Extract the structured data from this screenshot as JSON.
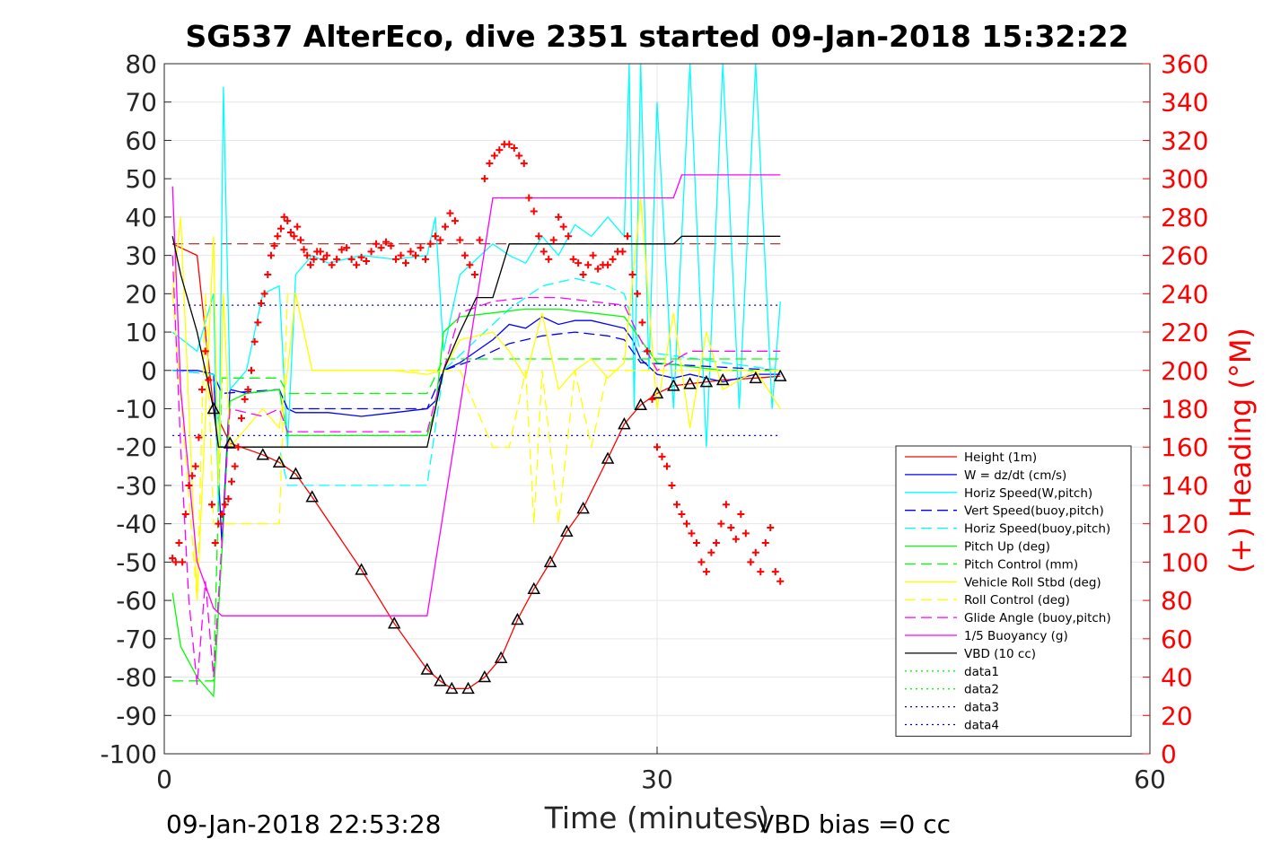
{
  "chart_data": {
    "type": "line",
    "title": "SG537 AlterEco, dive 2351 started 09-Jan-2018 15:32:22",
    "xlabel": "Time (minutes)",
    "ylabel": "",
    "y2label": "(+) Heading (°M)",
    "xlim": [
      0,
      60
    ],
    "ylim": [
      -100,
      80
    ],
    "y2lim": [
      0,
      360
    ],
    "x_ticks": [
      0,
      30,
      60
    ],
    "y_ticks": [
      80,
      70,
      60,
      50,
      40,
      30,
      20,
      10,
      0,
      -10,
      -20,
      -30,
      -40,
      -50,
      -60,
      -70,
      -80,
      -90,
      -100
    ],
    "y2_ticks": [
      360,
      340,
      320,
      300,
      280,
      260,
      240,
      220,
      200,
      180,
      160,
      140,
      120,
      100,
      80,
      60,
      40,
      20,
      0
    ],
    "grid": true,
    "legend_position": "bottom-right",
    "footer_left": "09-Jan-2018 22:53:28",
    "footer_right": "VBD bias =0 cc",
    "colors": {
      "height": "#ff0000",
      "w": "#0000ff",
      "horiz": "#00ffff",
      "vert_buoy": "#0000ff",
      "horiz_buoy": "#00ffff",
      "pitch_up": "#00ff00",
      "pitch_ctrl": "#00ff00",
      "roll": "#ffff00",
      "roll_ctrl": "#ffff00",
      "glide": "#ff00ff",
      "buoy": "#ff00ff",
      "vbd": "#000000",
      "heading": "#ff0000",
      "data3": "#0000aa"
    },
    "legend": [
      {
        "name": "Height (1m)",
        "color": "#ff0000",
        "dash": "solid"
      },
      {
        "name": "W = dz/dt (cm/s)",
        "color": "#0000ff",
        "dash": "solid"
      },
      {
        "name": "Horiz Speed(W,pitch)",
        "color": "#00ffff",
        "dash": "solid"
      },
      {
        "name": "Vert Speed(buoy,pitch)",
        "color": "#0000ff",
        "dash": "dashed"
      },
      {
        "name": "Horiz Speed(buoy,pitch)",
        "color": "#00ffff",
        "dash": "dashed"
      },
      {
        "name": "Pitch Up (deg)",
        "color": "#00ff00",
        "dash": "solid"
      },
      {
        "name": "Pitch Control (mm)",
        "color": "#00ff00",
        "dash": "dashed"
      },
      {
        "name": "Vehicle Roll Stbd (deg)",
        "color": "#ffff00",
        "dash": "solid"
      },
      {
        "name": "Roll Control (deg)",
        "color": "#ffff00",
        "dash": "dashed"
      },
      {
        "name": "Glide Angle (buoy,pitch)",
        "color": "#ff00ff",
        "dash": "dashed"
      },
      {
        "name": "1/5 Buoyancy (g)",
        "color": "#ff00ff",
        "dash": "solid"
      },
      {
        "name": "VBD (10 cc)",
        "color": "#000000",
        "dash": "solid"
      },
      {
        "name": "data1",
        "color": "#00ff00",
        "dash": "dotted"
      },
      {
        "name": "data2",
        "color": "#00ff00",
        "dash": "dotted"
      },
      {
        "name": "data3",
        "color": "#0000aa",
        "dash": "dotted"
      },
      {
        "name": "data4",
        "color": "#0000aa",
        "dash": "dotted"
      }
    ],
    "series": [
      {
        "key": "height",
        "x": [
          0.5,
          2,
          3,
          4,
          6,
          7,
          8,
          9,
          12,
          14,
          16,
          16.8,
          17.5,
          18.5,
          19.5,
          20.5,
          21.5,
          22.5,
          23.5,
          24.5,
          25.5,
          27,
          28,
          29,
          30,
          31,
          32,
          33,
          34,
          36,
          37.5
        ],
        "y": [
          33,
          30,
          -10,
          -19,
          -22,
          -24,
          -27,
          -33,
          -52,
          -66,
          -78,
          -81,
          -83,
          -83,
          -80,
          -75,
          -65,
          -57,
          -50,
          -42,
          -36,
          -23,
          -14,
          -9,
          -6,
          -4,
          -3.5,
          -3,
          -2.5,
          -2,
          -1.5
        ]
      },
      {
        "key": "w",
        "x": [
          0.5,
          2,
          3,
          3.5,
          4,
          5,
          7,
          7.5,
          8,
          10,
          12,
          14,
          16,
          16.5,
          17,
          18,
          19,
          20,
          21,
          22,
          23,
          24,
          25,
          26,
          27,
          28,
          28.5,
          29,
          30,
          31,
          32,
          34,
          36,
          37.5
        ],
        "y": [
          0,
          0,
          -1,
          -45,
          -5,
          -6,
          -5,
          -10,
          -11,
          -11,
          -12,
          -11,
          -10,
          -8,
          0,
          2,
          5,
          8,
          12,
          11,
          14,
          12,
          13,
          13,
          12,
          11,
          8,
          3,
          -1,
          -2,
          -1,
          -3,
          -1,
          -1
        ]
      },
      {
        "key": "horiz",
        "x": [
          0.5,
          2,
          3,
          3.3,
          3.6,
          4,
          5,
          6,
          7,
          7.5,
          8,
          9,
          10,
          12,
          14,
          16,
          16.5,
          17,
          18,
          20,
          21,
          22,
          23,
          24,
          25,
          26,
          27,
          28,
          28.3,
          28.6,
          29,
          29.5,
          30,
          31,
          32,
          33,
          34,
          35,
          36,
          37,
          37.5
        ],
        "y": [
          10,
          5,
          20,
          -35,
          74,
          -5,
          0,
          20,
          22,
          -20,
          25,
          30,
          28,
          30,
          29,
          30,
          40,
          5,
          25,
          33,
          30,
          28,
          35,
          30,
          38,
          35,
          40,
          35,
          80,
          -10,
          80,
          0,
          70,
          -10,
          80,
          -20,
          80,
          -10,
          80,
          -10,
          18
        ]
      },
      {
        "key": "vert_buoy",
        "x": [
          0.5,
          3,
          3.5,
          7,
          7.5,
          16,
          17,
          19,
          21,
          23,
          25,
          27,
          28,
          29,
          37.5
        ],
        "y": [
          0,
          -1,
          -6,
          -5,
          -10,
          -10,
          0,
          3,
          7,
          9,
          10,
          9,
          8,
          2,
          0
        ]
      },
      {
        "key": "horiz_buoy",
        "x": [
          0.5,
          3,
          3.5,
          7,
          7.5,
          16,
          17,
          19,
          21,
          23,
          25,
          27,
          28,
          29,
          37.5
        ],
        "y": [
          0,
          -1,
          -20,
          -20,
          -30,
          -30,
          0,
          8,
          16,
          22,
          24,
          22,
          20,
          5,
          0
        ]
      },
      {
        "key": "pitch_up",
        "x": [
          0.5,
          1,
          2,
          3,
          3.5,
          4,
          5,
          7,
          7.5,
          10,
          14,
          16,
          16.5,
          17,
          18,
          20,
          22,
          24,
          26,
          28,
          29,
          30,
          32,
          34,
          36,
          37.5
        ],
        "y": [
          -58,
          -72,
          -80,
          -85,
          -48,
          -8,
          -6,
          -5,
          -17,
          -17,
          -17,
          -17,
          -10,
          10,
          14,
          15,
          16,
          16,
          15,
          14,
          8,
          2,
          1,
          0,
          0,
          0
        ]
      },
      {
        "key": "pitch_ctrl",
        "x": [
          0.5,
          3,
          3.5,
          7,
          7.5,
          16,
          17,
          37.5
        ],
        "y": [
          -81,
          -81,
          -2,
          -2,
          -6,
          -6,
          3,
          3
        ]
      },
      {
        "key": "roll",
        "x": [
          0.5,
          1,
          2,
          3,
          3.3,
          3.6,
          4,
          6,
          7,
          7.5,
          8,
          9,
          10,
          14,
          16,
          17,
          18,
          20,
          21,
          22,
          23,
          24,
          25,
          26,
          27,
          28,
          29,
          30,
          31,
          32,
          33,
          34,
          36,
          37.5
        ],
        "y": [
          20,
          40,
          -60,
          35,
          -30,
          20,
          -20,
          -10,
          -15,
          0,
          20,
          0,
          0,
          0,
          -1,
          0,
          8,
          10,
          5,
          -2,
          15,
          -5,
          0,
          3,
          -2,
          2,
          45,
          -10,
          15,
          -15,
          10,
          -5,
          0,
          -10
        ]
      },
      {
        "key": "roll_ctrl",
        "x": [
          0.5,
          2,
          2.5,
          3,
          3.5,
          6,
          7,
          7.5,
          8,
          9,
          10,
          14,
          16,
          17,
          18,
          20,
          21,
          22,
          22.5,
          23,
          24,
          25,
          26,
          27,
          28,
          29,
          30,
          32,
          34,
          36,
          37.5
        ],
        "y": [
          20,
          -60,
          20,
          -40,
          -40,
          -40,
          -40,
          20,
          20,
          0,
          0,
          0,
          0,
          0,
          0,
          -20,
          -20,
          0,
          -40,
          0,
          -40,
          0,
          -20,
          0,
          0,
          0,
          0,
          0,
          0,
          0,
          0
        ]
      },
      {
        "key": "glide",
        "x": [
          0.5,
          1,
          1.5,
          2,
          2.5,
          3,
          3.5,
          4,
          6,
          7,
          7.5,
          10,
          14,
          16,
          17,
          18,
          20,
          22,
          24,
          26,
          28,
          29,
          30,
          32,
          34,
          36,
          37.5
        ],
        "y": [
          30,
          -20,
          -60,
          -82,
          -55,
          -80,
          -45,
          -10,
          -12,
          -10,
          -16,
          -16,
          -16,
          -16,
          0,
          15,
          18,
          19,
          19,
          18,
          17,
          8,
          0,
          5,
          5,
          5,
          5
        ]
      },
      {
        "key": "buoy",
        "x": [
          0.5,
          1,
          2,
          3,
          3.5,
          4,
          7,
          8,
          10,
          14,
          16,
          20,
          21,
          22,
          24,
          26,
          28,
          30,
          31,
          31.5,
          32,
          34,
          36,
          37.5
        ],
        "y": [
          48,
          -5,
          -50,
          -62,
          -64,
          -64,
          -64,
          -64,
          -64,
          -64,
          -64,
          45,
          45,
          45,
          45,
          45,
          45,
          45,
          45,
          51,
          51,
          51,
          51,
          51
        ]
      },
      {
        "key": "vbd",
        "x": [
          0.5,
          1,
          2,
          3,
          3.3,
          4,
          6,
          7,
          8,
          10,
          14,
          16,
          17,
          18,
          19,
          20,
          21,
          22,
          24,
          26,
          28,
          30,
          31,
          31.5,
          32,
          34,
          36,
          37.5
        ],
        "y": [
          35,
          25,
          10,
          -10,
          -20,
          -20,
          -20,
          -20,
          -20,
          -20,
          -20,
          -20,
          0,
          10,
          19,
          19,
          33,
          33,
          33,
          33,
          33,
          33,
          33,
          35,
          35,
          35,
          35,
          35
        ]
      }
    ],
    "heading": {
      "x": [
        0.5,
        0.7,
        0.9,
        1.1,
        1.3,
        1.5,
        1.7,
        1.9,
        2.1,
        2.3,
        2.5,
        2.7,
        2.9,
        3.1,
        3.3,
        3.5,
        3.7,
        3.9,
        4.1,
        4.3,
        4.5,
        4.7,
        4.9,
        5.1,
        5.3,
        5.5,
        5.7,
        5.9,
        6.1,
        6.3,
        6.5,
        6.7,
        6.9,
        7.1,
        7.3,
        7.5,
        7.7,
        7.9,
        8.1,
        8.3,
        8.5,
        8.7,
        8.9,
        9.1,
        9.3,
        9.5,
        9.7,
        9.9,
        10.2,
        10.5,
        10.8,
        11.1,
        11.4,
        11.7,
        12,
        12.3,
        12.6,
        12.9,
        13.2,
        13.5,
        13.8,
        14.1,
        14.4,
        14.7,
        15,
        15.3,
        15.6,
        15.9,
        16.2,
        16.5,
        16.8,
        17.1,
        17.4,
        17.7,
        18,
        18.3,
        18.6,
        18.9,
        19.2,
        19.5,
        19.8,
        20.1,
        20.4,
        20.7,
        21,
        21.3,
        21.6,
        21.9,
        22.2,
        22.5,
        22.8,
        23.1,
        23.4,
        23.7,
        24,
        24.3,
        24.6,
        24.9,
        25.2,
        25.5,
        25.8,
        26.1,
        26.4,
        26.7,
        27,
        27.3,
        27.6,
        27.9,
        28.2,
        28.5,
        28.8,
        29.1,
        29.4,
        29.7,
        30,
        30.3,
        30.6,
        30.9,
        31.2,
        31.5,
        31.8,
        32.1,
        32.4,
        32.7,
        33,
        33.3,
        33.6,
        33.9,
        34.2,
        34.5,
        34.8,
        35.1,
        35.4,
        35.7,
        36,
        36.3,
        36.6,
        36.9,
        37.2,
        37.5
      ],
      "y": [
        102,
        100,
        110,
        100,
        125,
        140,
        145,
        150,
        165,
        190,
        210,
        195,
        130,
        110,
        120,
        125,
        130,
        133,
        142,
        150,
        160,
        175,
        185,
        190,
        200,
        215,
        225,
        235,
        240,
        250,
        260,
        265,
        270,
        274,
        280,
        278,
        272,
        270,
        275,
        268,
        263,
        260,
        255,
        258,
        262,
        262,
        258,
        260,
        255,
        258,
        263,
        264,
        258,
        255,
        259,
        257,
        262,
        266,
        264,
        267,
        265,
        258,
        260,
        256,
        262,
        260,
        264,
        258,
        266,
        270,
        268,
        275,
        282,
        278,
        268,
        260,
        255,
        250,
        268,
        300,
        308,
        312,
        315,
        318,
        318,
        316,
        312,
        308,
        290,
        283,
        270,
        262,
        258,
        268,
        280,
        275,
        270,
        258,
        256,
        250,
        255,
        260,
        253,
        255,
        255,
        258,
        262,
        262,
        270,
        250,
        240,
        225,
        210,
        185,
        160,
        155,
        150,
        140,
        130,
        125,
        120,
        115,
        110,
        100,
        95,
        105,
        110,
        120,
        130,
        118,
        112,
        125,
        115,
        100,
        105,
        95,
        110,
        118,
        95,
        90
      ]
    }
  }
}
